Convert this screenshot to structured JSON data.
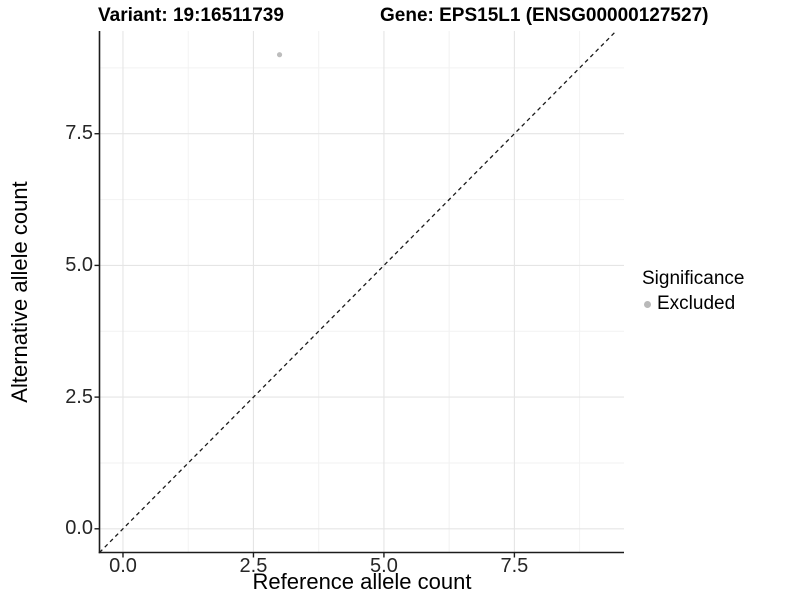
{
  "header": {
    "title_left": "Variant: 19:16511739",
    "title_right": "Gene: EPS15L1 (ENSG00000127527)"
  },
  "chart_data": {
    "type": "scatter",
    "xlabel": "Reference allele count",
    "ylabel": "Alternative allele count",
    "xlim": [
      -0.45,
      9.6
    ],
    "ylim": [
      -0.45,
      9.45
    ],
    "x_ticks": [
      0,
      2.5,
      5,
      7.5
    ],
    "x_tick_labels": [
      "0.0",
      "2.5",
      "5.0",
      "7.5"
    ],
    "y_ticks": [
      0,
      2.5,
      5,
      7.5
    ],
    "y_tick_labels": [
      "0.0",
      "2.5",
      "5.0",
      "7.5"
    ],
    "x_minor_ticks": [
      1.25,
      3.75,
      6.25,
      8.75
    ],
    "y_minor_ticks": [
      1.25,
      3.75,
      6.25,
      8.75
    ],
    "grid": "major+minor",
    "series": [
      {
        "name": "Excluded",
        "marker": "circle",
        "color": "#bdbdbd",
        "points": [
          {
            "x": 3,
            "y": 9
          }
        ]
      }
    ],
    "reference_line": {
      "type": "identity",
      "slope": 1,
      "intercept": 0,
      "linestyle": "dashed",
      "color": "#1a1a1a"
    },
    "legend": {
      "title": "Significance",
      "position": "right",
      "items": [
        {
          "label": "Excluded",
          "color": "#bdbdbd",
          "marker": "circle"
        }
      ]
    },
    "style": {
      "background": "#ffffff",
      "grid_major_color": "#e5e5e5",
      "grid_minor_color": "#f2f2f2",
      "axis_color": "#1c1c1c",
      "tick_color": "#1c1c1c",
      "tick_label_color": "#262626"
    }
  }
}
